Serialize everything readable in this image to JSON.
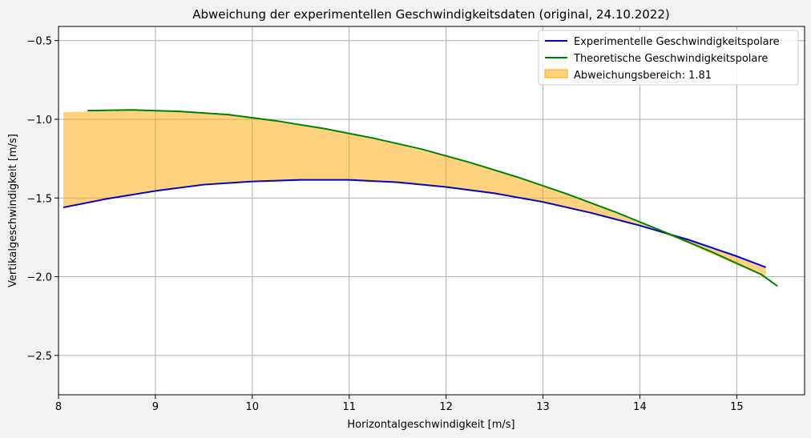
{
  "chart_data": {
    "type": "line",
    "title": "Abweichung der experimentellen Geschwindigkeitsdaten (original, 24.10.2022)",
    "xlabel": "Horizontalgeschwindigkeit [m/s]",
    "ylabel": "Vertikalgeschwindigkeit [m/s]",
    "xlim": [
      8.0,
      15.7
    ],
    "ylim": [
      -2.75,
      -0.41
    ],
    "xticks": [
      8,
      9,
      10,
      11,
      12,
      13,
      14,
      15
    ],
    "yticks": [
      -2.5,
      -2.0,
      -1.5,
      -1.0,
      -0.5
    ],
    "xtick_labels": [
      "8",
      "9",
      "10",
      "11",
      "12",
      "13",
      "14",
      "15"
    ],
    "ytick_labels": [
      "−2.5",
      "−2.0",
      "−1.5",
      "−1.0",
      "−0.5"
    ],
    "grid": true,
    "legend_position": "top-right",
    "series": [
      {
        "name": "Experimentelle Geschwindigkeitspolare",
        "color": "#0000cc",
        "x": [
          8.05,
          8.5,
          9.0,
          9.5,
          10.0,
          10.5,
          11.0,
          11.5,
          12.0,
          12.5,
          13.0,
          13.5,
          14.0,
          14.5,
          15.0,
          15.3
        ],
        "y": [
          -1.56,
          -1.505,
          -1.455,
          -1.415,
          -1.395,
          -1.385,
          -1.385,
          -1.4,
          -1.43,
          -1.47,
          -1.525,
          -1.595,
          -1.675,
          -1.765,
          -1.87,
          -1.94
        ]
      },
      {
        "name": "Theoretische Geschwindigkeitspolare",
        "color": "#008000",
        "x": [
          8.3,
          8.75,
          9.25,
          9.75,
          10.25,
          10.75,
          11.25,
          11.75,
          12.25,
          12.75,
          13.25,
          13.75,
          14.25,
          14.75,
          15.25,
          15.42
        ],
        "y": [
          -0.945,
          -0.94,
          -0.95,
          -0.97,
          -1.01,
          -1.06,
          -1.12,
          -1.19,
          -1.275,
          -1.37,
          -1.475,
          -1.59,
          -1.715,
          -1.845,
          -1.985,
          -2.06
        ]
      }
    ],
    "fill": {
      "name": "Abweichungsbereich: 1.81",
      "color": "#ffa500",
      "opacity": 0.5,
      "x": [
        8.05,
        8.5,
        9.0,
        9.5,
        10.0,
        10.5,
        11.0,
        11.5,
        12.0,
        12.5,
        13.0,
        13.5,
        14.0,
        14.5,
        15.0,
        15.3
      ],
      "y_upper": [
        -0.955,
        -0.945,
        -0.945,
        -0.96,
        -0.99,
        -1.035,
        -1.09,
        -1.16,
        -1.235,
        -1.325,
        -1.425,
        -1.535,
        -1.66,
        -1.79,
        -1.925,
        -2.0
      ],
      "y_lower": [
        -1.56,
        -1.505,
        -1.455,
        -1.415,
        -1.395,
        -1.385,
        -1.385,
        -1.4,
        -1.43,
        -1.47,
        -1.525,
        -1.595,
        -1.675,
        -1.765,
        -1.87,
        -1.94
      ]
    }
  }
}
